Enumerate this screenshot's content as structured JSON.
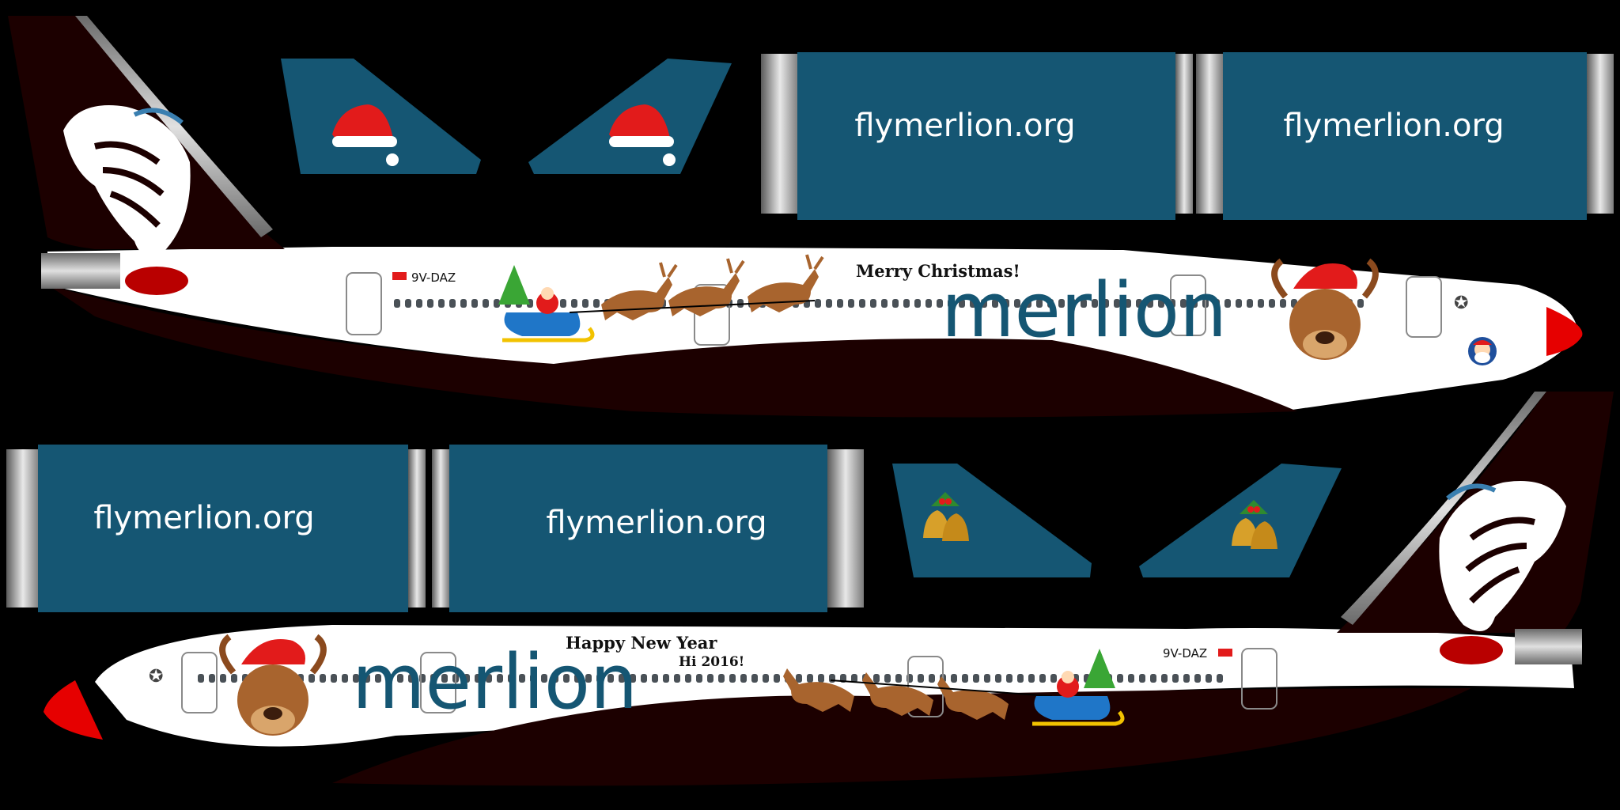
{
  "texture": {
    "background_color": "#000000",
    "colors": {
      "blue_panel": "#155673",
      "tail_dark": "#1c0000",
      "fuselage_white": "#ffffff",
      "nose_red": "#e60000",
      "window_gray": "#4a5157",
      "reindeer_brown": "#a8642e",
      "santa_hat_red": "#e21b1b",
      "sleigh_blue": "#1f76c8",
      "sleigh_gold": "#f2c200"
    }
  },
  "upper_fuselage": {
    "registration": "9V-DAZ",
    "greeting": "Merry Christmas!",
    "brand": "merlion"
  },
  "lower_fuselage": {
    "registration": "9V-DAZ",
    "greeting": "Happy New Year",
    "greeting_sub": "Hi 2016!",
    "brand": "merlion"
  },
  "engine_panels": {
    "top_left": "flymerlion.org",
    "top_right": "flymerlion.org",
    "bottom_left": "flymerlion.org",
    "bottom_right": "flymerlion.org"
  },
  "stabilizers": {
    "top_decor": "santa-hat",
    "bottom_decor": "christmas-bells"
  }
}
